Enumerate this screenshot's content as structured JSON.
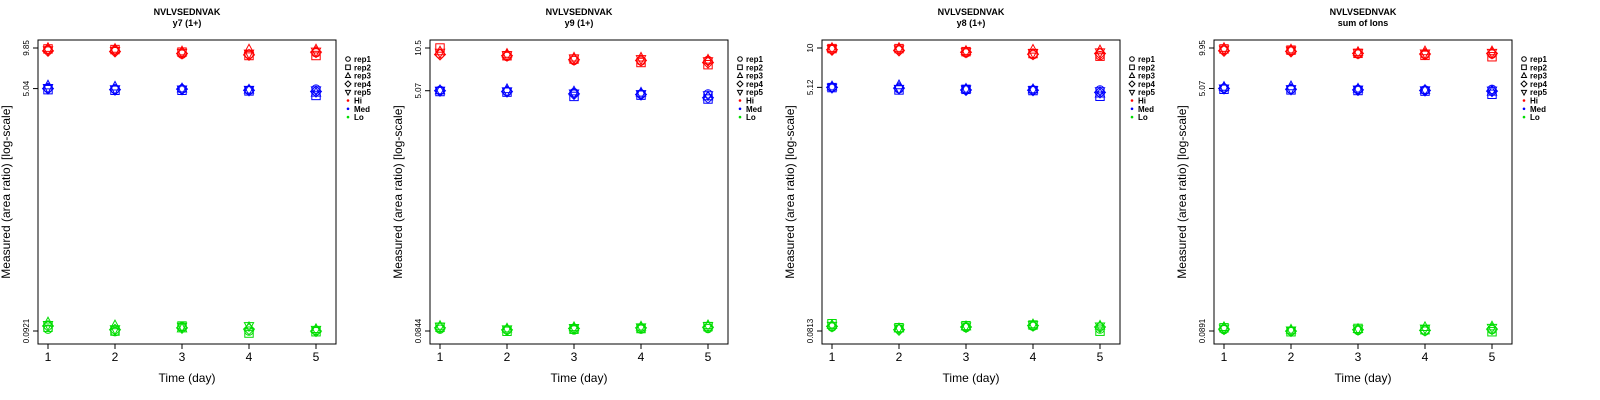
{
  "chart_data": [
    {
      "type": "scatter",
      "title": "NVLVSEDNVAK",
      "subtitle": "y7 (1+)",
      "xlabel": "Time (day)",
      "ylabel": "Measured (area ratio) [log-scale]",
      "y_scale": "log",
      "ylim": [
        0.0921,
        9.85
      ],
      "x_ticks": [
        "1",
        "2",
        "3",
        "4",
        "5"
      ],
      "y_ticks": [
        "0.0921",
        "5.04",
        "9.85"
      ],
      "legend_position": "right",
      "legend": {
        "shapes": [
          "rep1",
          "rep2",
          "rep3",
          "rep4",
          "rep5"
        ],
        "colors": [
          {
            "name": "Hi",
            "color": "#ff0000"
          },
          {
            "name": "Med",
            "color": "#0000ff"
          },
          {
            "name": "Lo",
            "color": "#00dd00"
          }
        ]
      },
      "series": [
        {
          "name": "Hi",
          "color": "#ff0000",
          "values": {
            "rep1": [
              9.6,
              9.5,
              8.9,
              8.9,
              9.1
            ],
            "rep2": [
              9.7,
              9.6,
              9.2,
              8.7,
              8.7
            ],
            "rep3": [
              9.85,
              9.7,
              9.3,
              9.6,
              9.6
            ],
            "rep4": [
              9.4,
              9.3,
              9.0,
              8.8,
              9.2
            ],
            "rep5": [
              9.5,
              9.4,
              9.1,
              9.0,
              9.3
            ]
          }
        },
        {
          "name": "Med",
          "color": "#0000ff",
          "values": {
            "rep1": [
              5.1,
              5.0,
              5.0,
              4.9,
              5.0
            ],
            "rep2": [
              4.95,
              4.9,
              4.9,
              4.85,
              4.5
            ],
            "rep3": [
              5.3,
              5.2,
              5.05,
              4.95,
              4.7
            ],
            "rep4": [
              5.04,
              4.95,
              5.0,
              4.9,
              4.8
            ],
            "rep5": [
              5.1,
              5.0,
              4.98,
              4.95,
              4.9
            ]
          }
        },
        {
          "name": "Lo",
          "color": "#00dd00",
          "values": {
            "rep1": [
              0.095,
              0.091,
              0.099,
              0.092,
              0.093
            ],
            "rep2": [
              0.098,
              0.092,
              0.1,
              0.089,
              0.091
            ],
            "rep3": [
              0.106,
              0.101,
              0.096,
              0.098,
              0.095
            ],
            "rep4": [
              0.1,
              0.094,
              0.097,
              0.095,
              0.092
            ],
            "rep5": [
              0.102,
              0.095,
              0.099,
              0.1,
              0.094
            ]
          }
        }
      ]
    },
    {
      "type": "scatter",
      "title": "NVLVSEDNVAK",
      "subtitle": "y9 (1+)",
      "xlabel": "Time (day)",
      "ylabel": "Measured (area ratio) [log-scale]",
      "y_scale": "log",
      "ylim": [
        0.0844,
        10.5
      ],
      "x_ticks": [
        "1",
        "2",
        "3",
        "4",
        "5"
      ],
      "y_ticks": [
        "0.0844",
        "5.07",
        "10.5"
      ],
      "legend_position": "right",
      "legend": {
        "shapes": [
          "rep1",
          "rep2",
          "rep3",
          "rep4",
          "rep5"
        ],
        "colors": [
          {
            "name": "Hi",
            "color": "#ff0000"
          },
          {
            "name": "Med",
            "color": "#0000ff"
          },
          {
            "name": "Lo",
            "color": "#00dd00"
          }
        ]
      },
      "series": [
        {
          "name": "Hi",
          "color": "#ff0000",
          "values": {
            "rep1": [
              9.5,
              9.1,
              8.5,
              8.4,
              8.5
            ],
            "rep2": [
              10.5,
              9.2,
              8.7,
              8.2,
              7.9
            ],
            "rep3": [
              9.9,
              9.5,
              8.9,
              8.9,
              8.6
            ],
            "rep4": [
              9.4,
              9.2,
              8.6,
              8.5,
              8.2
            ],
            "rep5": [
              9.7,
              9.3,
              8.8,
              8.7,
              8.4
            ]
          }
        },
        {
          "name": "Med",
          "color": "#0000ff",
          "values": {
            "rep1": [
              5.1,
              5.0,
              4.9,
              4.8,
              4.8
            ],
            "rep2": [
              5.0,
              4.95,
              4.6,
              4.7,
              4.4
            ],
            "rep3": [
              5.1,
              5.2,
              5.0,
              4.9,
              4.6
            ],
            "rep4": [
              5.07,
              5.0,
              4.8,
              4.75,
              4.5
            ],
            "rep5": [
              5.08,
              5.02,
              4.85,
              4.8,
              4.7
            ]
          }
        },
        {
          "name": "Lo",
          "color": "#00dd00",
          "values": {
            "rep1": [
              0.087,
              0.086,
              0.086,
              0.087,
              0.088
            ],
            "rep2": [
              0.09,
              0.084,
              0.087,
              0.088,
              0.091
            ],
            "rep3": [
              0.092,
              0.088,
              0.09,
              0.091,
              0.093
            ],
            "rep4": [
              0.089,
              0.086,
              0.088,
              0.089,
              0.09
            ],
            "rep5": [
              0.091,
              0.087,
              0.089,
              0.09,
              0.092
            ]
          }
        }
      ]
    },
    {
      "type": "scatter",
      "title": "NVLVSEDNVAK",
      "subtitle": "y8 (1+)",
      "xlabel": "Time (day)",
      "ylabel": "Measured (area ratio) [log-scale]",
      "y_scale": "log",
      "ylim": [
        0.0813,
        10
      ],
      "x_ticks": [
        "1",
        "2",
        "3",
        "4",
        "5"
      ],
      "y_ticks": [
        "0.0813",
        "5.12",
        "10"
      ],
      "legend_position": "right",
      "legend": {
        "shapes": [
          "rep1",
          "rep2",
          "rep3",
          "rep4",
          "rep5"
        ],
        "colors": [
          {
            "name": "Hi",
            "color": "#ff0000"
          },
          {
            "name": "Med",
            "color": "#0000ff"
          },
          {
            "name": "Lo",
            "color": "#00dd00"
          }
        ]
      },
      "series": [
        {
          "name": "Hi",
          "color": "#ff0000",
          "values": {
            "rep1": [
              9.8,
              9.7,
              9.2,
              8.9,
              8.8
            ],
            "rep2": [
              9.9,
              9.9,
              9.4,
              9.1,
              8.7
            ],
            "rep3": [
              10.0,
              10.0,
              9.5,
              9.7,
              9.6
            ],
            "rep4": [
              9.7,
              9.6,
              9.3,
              9.0,
              9.1
            ],
            "rep5": [
              9.85,
              9.8,
              9.35,
              9.2,
              9.3
            ]
          }
        },
        {
          "name": "Med",
          "color": "#0000ff",
          "values": {
            "rep1": [
              5.12,
              5.0,
              4.95,
              4.9,
              4.9
            ],
            "rep2": [
              5.1,
              4.9,
              4.95,
              4.85,
              4.4
            ],
            "rep3": [
              5.2,
              5.3,
              5.0,
              4.95,
              4.6
            ],
            "rep4": [
              5.12,
              5.05,
              4.9,
              4.88,
              4.7
            ],
            "rep5": [
              5.1,
              5.0,
              4.95,
              4.9,
              4.8
            ]
          }
        },
        {
          "name": "Lo",
          "color": "#00dd00",
          "values": {
            "rep1": [
              0.087,
              0.084,
              0.086,
              0.088,
              0.084
            ],
            "rep2": [
              0.092,
              0.086,
              0.089,
              0.09,
              0.081
            ],
            "rep3": [
              0.09,
              0.085,
              0.088,
              0.091,
              0.089
            ],
            "rep4": [
              0.088,
              0.083,
              0.087,
              0.089,
              0.087
            ],
            "rep5": [
              0.089,
              0.085,
              0.088,
              0.09,
              0.088
            ]
          }
        }
      ]
    },
    {
      "type": "scatter",
      "title": "NVLVSEDNVAK",
      "subtitle": "sum of Ions",
      "xlabel": "Time (day)",
      "ylabel": "Measured (area ratio) [log-scale]",
      "y_scale": "log",
      "ylim": [
        0.0891,
        9.95
      ],
      "x_ticks": [
        "1",
        "2",
        "3",
        "4",
        "5"
      ],
      "y_ticks": [
        "0.0891",
        "5.07",
        "9.95"
      ],
      "legend_position": "right",
      "legend": {
        "shapes": [
          "rep1",
          "rep2",
          "rep3",
          "rep4",
          "rep5"
        ],
        "colors": [
          {
            "name": "Hi",
            "color": "#ff0000"
          },
          {
            "name": "Med",
            "color": "#0000ff"
          },
          {
            "name": "Lo",
            "color": "#00dd00"
          }
        ]
      },
      "series": [
        {
          "name": "Hi",
          "color": "#ff0000",
          "values": {
            "rep1": [
              9.6,
              9.5,
              9.0,
              8.9,
              9.0
            ],
            "rep2": [
              9.8,
              9.6,
              9.1,
              8.8,
              8.6
            ],
            "rep3": [
              9.95,
              9.7,
              9.3,
              9.4,
              9.4
            ],
            "rep4": [
              9.5,
              9.4,
              9.1,
              9.0,
              9.1
            ],
            "rep5": [
              9.7,
              9.55,
              9.2,
              9.1,
              9.2
            ]
          }
        },
        {
          "name": "Med",
          "color": "#0000ff",
          "values": {
            "rep1": [
              5.1,
              5.0,
              5.0,
              4.95,
              5.0
            ],
            "rep2": [
              5.0,
              4.95,
              4.9,
              4.85,
              4.6
            ],
            "rep3": [
              5.2,
              5.25,
              5.05,
              4.95,
              4.8
            ],
            "rep4": [
              5.07,
              5.0,
              4.95,
              4.9,
              4.85
            ],
            "rep5": [
              5.08,
              5.02,
              4.98,
              4.92,
              4.9
            ]
          }
        },
        {
          "name": "Lo",
          "color": "#00dd00",
          "values": {
            "rep1": [
              0.091,
              0.089,
              0.09,
              0.089,
              0.091
            ],
            "rep2": [
              0.094,
              0.088,
              0.093,
              0.091,
              0.088
            ],
            "rep3": [
              0.095,
              0.091,
              0.092,
              0.095,
              0.096
            ],
            "rep4": [
              0.092,
              0.089,
              0.091,
              0.09,
              0.092
            ],
            "rep5": [
              0.093,
              0.09,
              0.092,
              0.093,
              0.094
            ]
          }
        }
      ]
    }
  ]
}
